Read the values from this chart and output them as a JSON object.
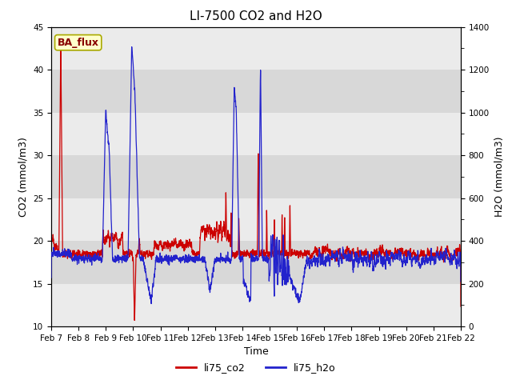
{
  "title": "LI-7500 CO2 and H2O",
  "xlabel": "Time",
  "ylabel_left": "CO2 (mmol/m3)",
  "ylabel_right": "H2O (mmol/m3)",
  "ylim_left": [
    10,
    45
  ],
  "ylim_right": [
    0,
    1400
  ],
  "yticks_left": [
    10,
    15,
    20,
    25,
    30,
    35,
    40,
    45
  ],
  "yticks_right": [
    0,
    200,
    400,
    600,
    800,
    1000,
    1200,
    1400
  ],
  "x_tick_labels": [
    "Feb 7",
    "Feb 8",
    "Feb 9",
    "Feb 10",
    "Feb 11",
    "Feb 12",
    "Feb 13",
    "Feb 14",
    "Feb 15",
    "Feb 16",
    "Feb 17",
    "Feb 18",
    "Feb 19",
    "Feb 20",
    "Feb 21",
    "Feb 22"
  ],
  "color_co2": "#cc0000",
  "color_h2o": "#2222cc",
  "legend_label_co2": "li75_co2",
  "legend_label_h2o": "li75_h2o",
  "annotation_text": "BA_flux",
  "annotation_bg": "#ffffcc",
  "annotation_border": "#aaaa00",
  "annotation_text_color": "#880000",
  "bg_color": "#f5f5f5",
  "band_light": "#ebebeb",
  "band_dark": "#d8d8d8",
  "title_fontsize": 11,
  "tick_fontsize": 7.5,
  "label_fontsize": 9
}
